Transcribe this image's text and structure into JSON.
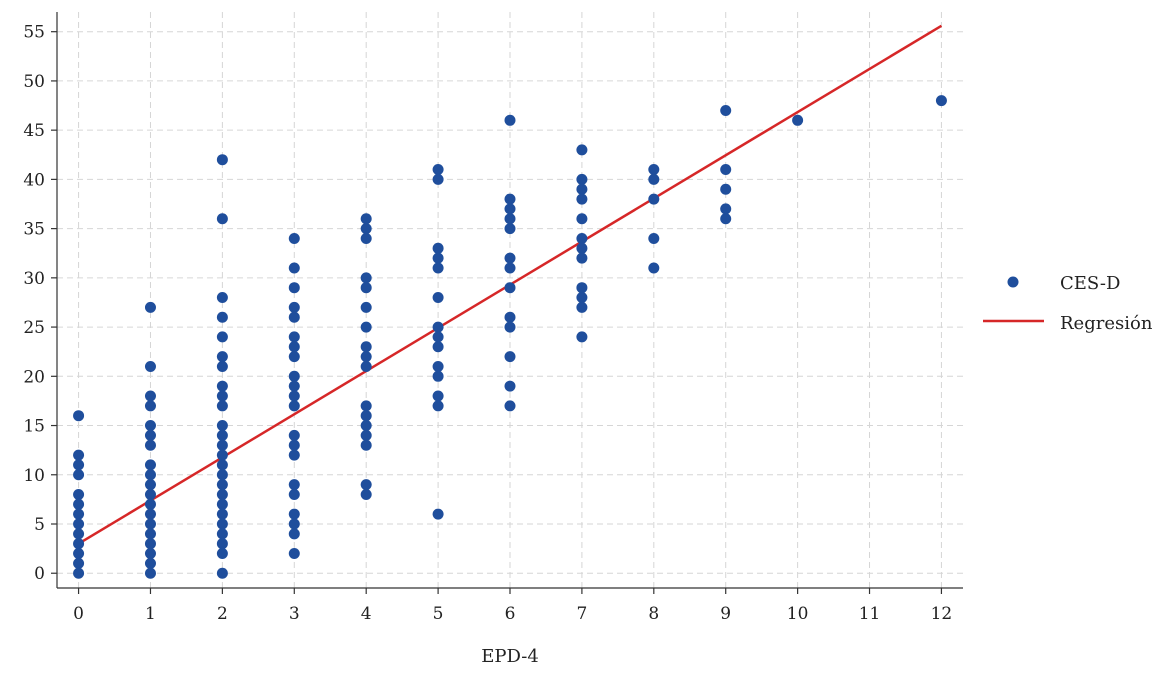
{
  "chart_data": {
    "type": "scatter",
    "title": "",
    "xlabel": "EPD-4",
    "ylabel": "",
    "xlim": [
      -0.3,
      12.3
    ],
    "ylim": [
      -1.5,
      57
    ],
    "x_ticks": [
      0,
      1,
      2,
      3,
      4,
      5,
      6,
      7,
      8,
      9,
      10,
      11,
      12
    ],
    "y_ticks": [
      0,
      5,
      10,
      15,
      20,
      25,
      30,
      35,
      40,
      45,
      50,
      55
    ],
    "grid": true,
    "legend_position": "right",
    "series": [
      {
        "name": "CES-D",
        "kind": "scatter",
        "color": "#1f4e9c",
        "points": [
          [
            0,
            16
          ],
          [
            0,
            12
          ],
          [
            0,
            11
          ],
          [
            0,
            10
          ],
          [
            0,
            8
          ],
          [
            0,
            7
          ],
          [
            0,
            6
          ],
          [
            0,
            5
          ],
          [
            0,
            4
          ],
          [
            0,
            3
          ],
          [
            0,
            2
          ],
          [
            0,
            1
          ],
          [
            0,
            0
          ],
          [
            1,
            27
          ],
          [
            1,
            21
          ],
          [
            1,
            18
          ],
          [
            1,
            17
          ],
          [
            1,
            15
          ],
          [
            1,
            14
          ],
          [
            1,
            13
          ],
          [
            1,
            11
          ],
          [
            1,
            10
          ],
          [
            1,
            9
          ],
          [
            1,
            8
          ],
          [
            1,
            7
          ],
          [
            1,
            6
          ],
          [
            1,
            5
          ],
          [
            1,
            4
          ],
          [
            1,
            3
          ],
          [
            1,
            2
          ],
          [
            1,
            1
          ],
          [
            1,
            0
          ],
          [
            2,
            42
          ],
          [
            2,
            36
          ],
          [
            2,
            28
          ],
          [
            2,
            26
          ],
          [
            2,
            24
          ],
          [
            2,
            22
          ],
          [
            2,
            21
          ],
          [
            2,
            19
          ],
          [
            2,
            18
          ],
          [
            2,
            17
          ],
          [
            2,
            15
          ],
          [
            2,
            14
          ],
          [
            2,
            13
          ],
          [
            2,
            12
          ],
          [
            2,
            11
          ],
          [
            2,
            10
          ],
          [
            2,
            9
          ],
          [
            2,
            8
          ],
          [
            2,
            7
          ],
          [
            2,
            6
          ],
          [
            2,
            5
          ],
          [
            2,
            4
          ],
          [
            2,
            3
          ],
          [
            2,
            2
          ],
          [
            2,
            0
          ],
          [
            3,
            34
          ],
          [
            3,
            31
          ],
          [
            3,
            29
          ],
          [
            3,
            27
          ],
          [
            3,
            26
          ],
          [
            3,
            24
          ],
          [
            3,
            23
          ],
          [
            3,
            22
          ],
          [
            3,
            20
          ],
          [
            3,
            19
          ],
          [
            3,
            18
          ],
          [
            3,
            17
          ],
          [
            3,
            14
          ],
          [
            3,
            13
          ],
          [
            3,
            12
          ],
          [
            3,
            9
          ],
          [
            3,
            8
          ],
          [
            3,
            6
          ],
          [
            3,
            5
          ],
          [
            3,
            4
          ],
          [
            3,
            2
          ],
          [
            4,
            36
          ],
          [
            4,
            35
          ],
          [
            4,
            34
          ],
          [
            4,
            30
          ],
          [
            4,
            29
          ],
          [
            4,
            27
          ],
          [
            4,
            25
          ],
          [
            4,
            23
          ],
          [
            4,
            22
          ],
          [
            4,
            21
          ],
          [
            4,
            17
          ],
          [
            4,
            16
          ],
          [
            4,
            15
          ],
          [
            4,
            14
          ],
          [
            4,
            13
          ],
          [
            4,
            9
          ],
          [
            4,
            8
          ],
          [
            5,
            41
          ],
          [
            5,
            40
          ],
          [
            5,
            33
          ],
          [
            5,
            32
          ],
          [
            5,
            31
          ],
          [
            5,
            28
          ],
          [
            5,
            25
          ],
          [
            5,
            24
          ],
          [
            5,
            23
          ],
          [
            5,
            21
          ],
          [
            5,
            20
          ],
          [
            5,
            18
          ],
          [
            5,
            17
          ],
          [
            5,
            6
          ],
          [
            6,
            46
          ],
          [
            6,
            38
          ],
          [
            6,
            37
          ],
          [
            6,
            36
          ],
          [
            6,
            35
          ],
          [
            6,
            32
          ],
          [
            6,
            31
          ],
          [
            6,
            29
          ],
          [
            6,
            26
          ],
          [
            6,
            25
          ],
          [
            6,
            22
          ],
          [
            6,
            19
          ],
          [
            6,
            17
          ],
          [
            7,
            43
          ],
          [
            7,
            40
          ],
          [
            7,
            39
          ],
          [
            7,
            38
          ],
          [
            7,
            36
          ],
          [
            7,
            34
          ],
          [
            7,
            33
          ],
          [
            7,
            32
          ],
          [
            7,
            29
          ],
          [
            7,
            28
          ],
          [
            7,
            27
          ],
          [
            7,
            24
          ],
          [
            8,
            41
          ],
          [
            8,
            40
          ],
          [
            8,
            38
          ],
          [
            8,
            34
          ],
          [
            8,
            31
          ],
          [
            9,
            47
          ],
          [
            9,
            41
          ],
          [
            9,
            39
          ],
          [
            9,
            37
          ],
          [
            9,
            36
          ],
          [
            10,
            46
          ],
          [
            12,
            48
          ]
        ]
      },
      {
        "name": "Regresión",
        "kind": "line",
        "color": "#d62728",
        "x": [
          0,
          12
        ],
        "y": [
          3.0,
          55.6
        ]
      }
    ]
  }
}
